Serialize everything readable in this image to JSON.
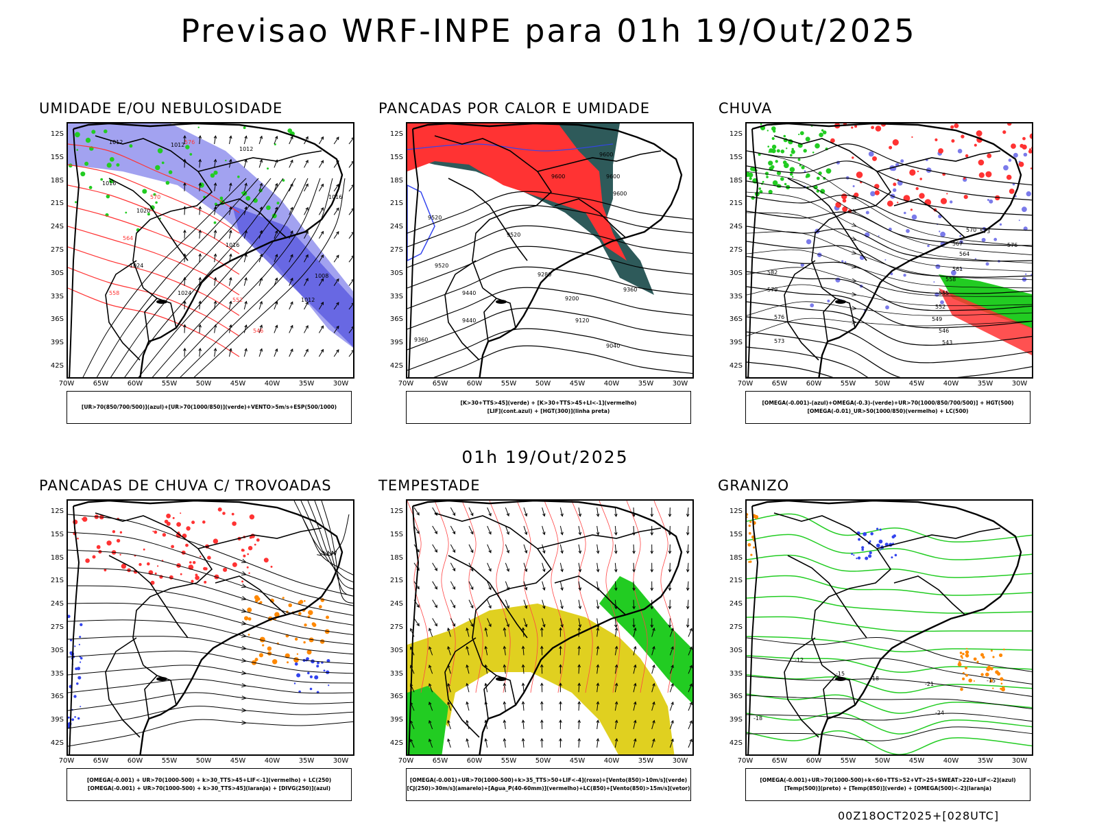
{
  "title": "Previsao WRF-INPE  para 01h 19/Out/2025",
  "subtitle": "01h 19/Out/2025",
  "footer": "00Z18OCT2025+[028UTC]",
  "lat_labels": [
    "12S",
    "15S",
    "18S",
    "21S",
    "24S",
    "27S",
    "30S",
    "33S",
    "36S",
    "39S",
    "42S"
  ],
  "lon_labels": [
    "70W",
    "65W",
    "60W",
    "55W",
    "50W",
    "45W",
    "40W",
    "35W",
    "30W"
  ],
  "colors": {
    "blue": "#7b7bea",
    "green": "#22cc22",
    "red": "#ff3333",
    "orange": "#ff8800",
    "yellow": "#e0d020",
    "teal": "#2e5a5a",
    "purple": "#cc33cc"
  },
  "panels": [
    {
      "id": "umidade",
      "title": "UMIDADE E/OU NEBULOSIDADE",
      "legend": [
        "[UR>70(850/700/500)](azul)+[UR>70(1000/850)](verde)+VENTO>5m/s+ESP(500/1000)"
      ],
      "contour_labels": [
        "1012",
        "1012",
        "1012",
        "1016",
        "1020",
        "1024",
        "1024",
        "1016",
        "1008",
        "1012",
        "1016",
        "576",
        "570",
        "564",
        "558",
        "552",
        "546"
      ]
    },
    {
      "id": "pancadas_calor",
      "title": "PANCADAS POR CALOR E UMIDADE",
      "legend": [
        "[K>30+TTS>45](verde) + [K>30+TTS>45+LI<-1](vermelho)",
        "[LIF](cont.azul) + [HGT(300)](linha preta)"
      ],
      "contour_labels": [
        "9600",
        "9600",
        "9600",
        "9520",
        "9520",
        "9440",
        "9360",
        "9280",
        "9200",
        "9120",
        "9040",
        "9360",
        "9600",
        "9520",
        "9440"
      ]
    },
    {
      "id": "chuva",
      "title": "CHUVA",
      "legend": [
        "[OMEGA(-0.001)-(azul)+OMEGA(-0.3)-(verde)+UR>70(1000/850/700/500)] + HGT(500)",
        "[OMEGA(-0.01)_UR>50(1000/850)(vermelho) + LC(500)"
      ],
      "contour_labels": [
        "582",
        "579",
        "576",
        "573",
        "570",
        "567",
        "564",
        "561",
        "558",
        "555",
        "552",
        "549",
        "546",
        "543",
        "573",
        "576"
      ]
    },
    {
      "id": "pancadas_trovoadas",
      "title": "PANCADAS DE CHUVA C/ TROVOADAS",
      "legend": [
        "[OMEGA(-0.001) + UR>70(1000-500) + k>30_TTS>45+LIF<-1](vermelho) + LC(250)",
        "[OMEGA(-0.001) + UR>70(1000-500) + k>30_TTS>45](laranja) + [DIVG(250)](azul)"
      ],
      "contour_labels": []
    },
    {
      "id": "tempestade",
      "title": "TEMPESTADE",
      "legend": [
        "[OMEGA(-0.001)+UR>70(1000-500)+k>35_TTS>50+LIF<-4](roxo)+[Vento(850)>10m/s](verde)",
        "[CJ(250)>30m/s](amarelo)+[Agua_P(40-60mm)](vermelho)+LC(850)+[Vento(850)>15m/s](vetor)"
      ],
      "contour_labels": []
    },
    {
      "id": "granizo",
      "title": "GRANIZO",
      "legend": [
        "[OMEGA(-0.001)+UR>70(1000-500)+k<60+TTS>52+VT>25+SWEAT>220+LIF<-2](azul)",
        "[Temp(500)](preto) + [Temp(850)](verde) + [OMEGA(500)<-2](laranja)"
      ],
      "contour_labels": [
        "-12",
        "-15",
        "-18",
        "-21",
        "-24",
        "-15",
        "-18"
      ]
    }
  ]
}
